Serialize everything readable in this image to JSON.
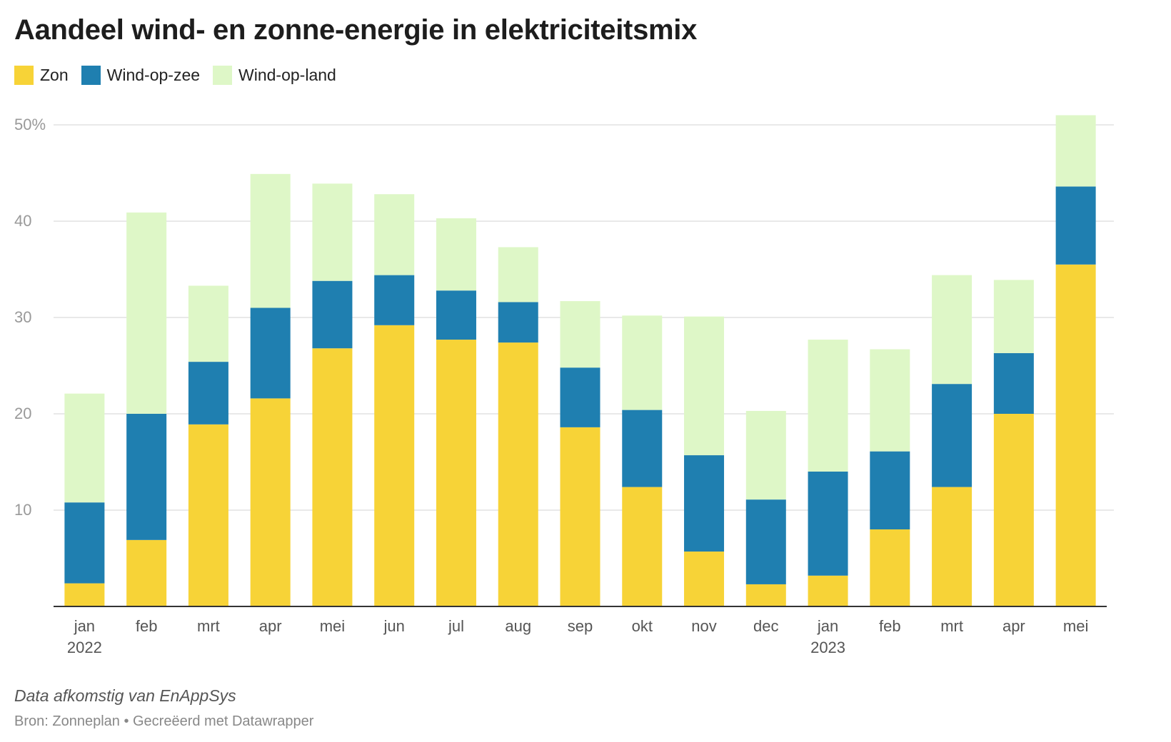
{
  "chart_data": {
    "type": "bar",
    "stacked": true,
    "title": "Aandeel wind- en zonne-energie in elektriciteitsmix",
    "categories": [
      "jan",
      "feb",
      "mrt",
      "apr",
      "mei",
      "jun",
      "jul",
      "aug",
      "sep",
      "okt",
      "nov",
      "dec",
      "jan",
      "feb",
      "mrt",
      "apr",
      "mei"
    ],
    "year_labels": [
      "2022",
      "",
      "",
      "",
      "",
      "",
      "",
      "",
      "",
      "",
      "",
      "",
      "2023",
      "",
      "",
      "",
      ""
    ],
    "series": [
      {
        "name": "Zon",
        "color": "#f7d337",
        "values": [
          2.4,
          6.9,
          18.9,
          21.6,
          26.8,
          29.2,
          27.7,
          27.4,
          18.6,
          12.4,
          5.7,
          2.3,
          3.2,
          8.0,
          12.4,
          20.0,
          35.5
        ]
      },
      {
        "name": "Wind-op-zee",
        "color": "#1f7fb0",
        "values": [
          8.4,
          13.1,
          6.5,
          9.4,
          7.0,
          5.2,
          5.1,
          4.2,
          6.2,
          8.0,
          10.0,
          8.8,
          10.8,
          8.1,
          10.7,
          6.3,
          8.1
        ]
      },
      {
        "name": "Wind-op-land",
        "color": "#def7c7",
        "values": [
          11.3,
          20.9,
          7.9,
          13.9,
          10.1,
          8.4,
          7.5,
          5.7,
          6.9,
          9.8,
          14.4,
          9.2,
          13.7,
          10.6,
          11.3,
          7.6,
          7.4
        ]
      }
    ],
    "yticks": [
      {
        "value": 10,
        "label": "10"
      },
      {
        "value": 20,
        "label": "20"
      },
      {
        "value": 30,
        "label": "30"
      },
      {
        "value": 40,
        "label": "40"
      },
      {
        "value": 50,
        "label": "50%"
      }
    ],
    "ylim": [
      0,
      50
    ],
    "grid": true,
    "legend_position": "top-left"
  },
  "notes": "Data afkomstig van EnAppSys",
  "source": "Bron: Zonneplan • Gecreëerd met Datawrapper"
}
